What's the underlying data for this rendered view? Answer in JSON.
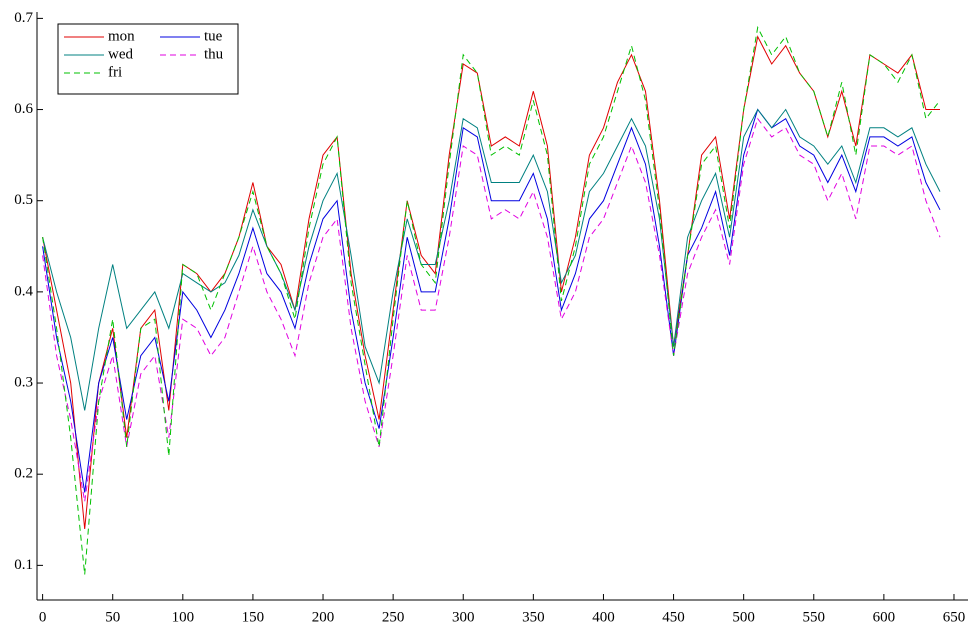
{
  "chart_data": {
    "type": "line",
    "x": [
      0,
      10,
      20,
      30,
      40,
      50,
      60,
      70,
      80,
      90,
      100,
      110,
      120,
      130,
      140,
      150,
      160,
      170,
      180,
      190,
      200,
      210,
      220,
      230,
      240,
      250,
      260,
      270,
      280,
      290,
      300,
      310,
      320,
      330,
      340,
      350,
      360,
      370,
      380,
      390,
      400,
      410,
      420,
      430,
      440,
      450,
      460,
      470,
      480,
      490,
      500,
      510,
      520,
      530,
      540,
      550,
      560,
      570,
      580,
      590,
      600,
      610,
      620,
      630,
      640
    ],
    "series": [
      {
        "name": "mon",
        "color": "#e00000",
        "dash": false,
        "values": [
          0.46,
          0.38,
          0.3,
          0.14,
          0.3,
          0.36,
          0.24,
          0.36,
          0.38,
          0.27,
          0.43,
          0.42,
          0.4,
          0.42,
          0.46,
          0.52,
          0.45,
          0.43,
          0.38,
          0.48,
          0.55,
          0.57,
          0.42,
          0.33,
          0.26,
          0.38,
          0.5,
          0.44,
          0.42,
          0.55,
          0.65,
          0.64,
          0.56,
          0.57,
          0.56,
          0.62,
          0.56,
          0.4,
          0.46,
          0.55,
          0.58,
          0.63,
          0.66,
          0.62,
          0.5,
          0.34,
          0.44,
          0.55,
          0.57,
          0.48,
          0.6,
          0.68,
          0.65,
          0.67,
          0.64,
          0.62,
          0.57,
          0.62,
          0.56,
          0.66,
          0.65,
          0.64,
          0.66,
          0.6,
          0.6
        ]
      },
      {
        "name": "tue",
        "color": "#0000e0",
        "dash": false,
        "values": [
          0.45,
          0.35,
          0.28,
          0.18,
          0.3,
          0.35,
          0.26,
          0.33,
          0.35,
          0.28,
          0.4,
          0.38,
          0.35,
          0.38,
          0.42,
          0.47,
          0.42,
          0.4,
          0.36,
          0.43,
          0.48,
          0.5,
          0.38,
          0.3,
          0.25,
          0.35,
          0.46,
          0.4,
          0.4,
          0.48,
          0.58,
          0.57,
          0.5,
          0.5,
          0.5,
          0.53,
          0.48,
          0.38,
          0.42,
          0.48,
          0.5,
          0.54,
          0.58,
          0.54,
          0.45,
          0.33,
          0.44,
          0.47,
          0.51,
          0.44,
          0.55,
          0.6,
          0.58,
          0.59,
          0.56,
          0.55,
          0.52,
          0.55,
          0.51,
          0.57,
          0.57,
          0.56,
          0.57,
          0.52,
          0.49
        ]
      },
      {
        "name": "wed",
        "color": "#008080",
        "dash": false,
        "values": [
          0.46,
          0.4,
          0.35,
          0.27,
          0.36,
          0.43,
          0.36,
          0.38,
          0.4,
          0.36,
          0.42,
          0.41,
          0.4,
          0.41,
          0.44,
          0.49,
          0.45,
          0.42,
          0.38,
          0.45,
          0.5,
          0.53,
          0.44,
          0.34,
          0.3,
          0.4,
          0.48,
          0.43,
          0.43,
          0.5,
          0.59,
          0.58,
          0.52,
          0.52,
          0.52,
          0.55,
          0.51,
          0.41,
          0.44,
          0.51,
          0.53,
          0.56,
          0.59,
          0.56,
          0.48,
          0.34,
          0.46,
          0.5,
          0.53,
          0.46,
          0.57,
          0.6,
          0.58,
          0.6,
          0.57,
          0.56,
          0.54,
          0.56,
          0.52,
          0.58,
          0.58,
          0.57,
          0.58,
          0.54,
          0.51
        ]
      },
      {
        "name": "thu",
        "color": "#e000e0",
        "dash": true,
        "values": [
          0.44,
          0.33,
          0.26,
          0.17,
          0.28,
          0.33,
          0.23,
          0.31,
          0.33,
          0.24,
          0.37,
          0.36,
          0.33,
          0.35,
          0.4,
          0.45,
          0.4,
          0.37,
          0.33,
          0.41,
          0.46,
          0.48,
          0.36,
          0.28,
          0.23,
          0.33,
          0.44,
          0.38,
          0.38,
          0.46,
          0.56,
          0.55,
          0.48,
          0.49,
          0.48,
          0.51,
          0.46,
          0.37,
          0.4,
          0.46,
          0.48,
          0.52,
          0.56,
          0.52,
          0.44,
          0.33,
          0.42,
          0.46,
          0.49,
          0.43,
          0.54,
          0.59,
          0.57,
          0.58,
          0.55,
          0.54,
          0.5,
          0.53,
          0.48,
          0.56,
          0.56,
          0.55,
          0.56,
          0.5,
          0.46
        ]
      },
      {
        "name": "fri",
        "color": "#00c000",
        "dash": true,
        "values": [
          0.46,
          0.36,
          0.24,
          0.09,
          0.28,
          0.37,
          0.23,
          0.36,
          0.37,
          0.22,
          0.43,
          0.42,
          0.38,
          0.42,
          0.46,
          0.51,
          0.45,
          0.42,
          0.37,
          0.47,
          0.54,
          0.57,
          0.41,
          0.32,
          0.23,
          0.37,
          0.5,
          0.43,
          0.41,
          0.54,
          0.66,
          0.64,
          0.55,
          0.56,
          0.55,
          0.61,
          0.55,
          0.39,
          0.45,
          0.54,
          0.57,
          0.62,
          0.67,
          0.61,
          0.49,
          0.33,
          0.44,
          0.54,
          0.56,
          0.47,
          0.6,
          0.69,
          0.66,
          0.68,
          0.64,
          0.62,
          0.57,
          0.63,
          0.55,
          0.66,
          0.65,
          0.63,
          0.66,
          0.59,
          0.61
        ]
      }
    ],
    "xlim": [
      -4,
      660
    ],
    "xticks": [
      0,
      50,
      100,
      150,
      200,
      250,
      300,
      350,
      400,
      450,
      500,
      550,
      600,
      650
    ],
    "ylim": [
      0.062,
      0.707
    ],
    "yticks": [
      0.1,
      0.2,
      0.3,
      0.4,
      0.5,
      0.6,
      0.7
    ],
    "legend": "upper left"
  }
}
